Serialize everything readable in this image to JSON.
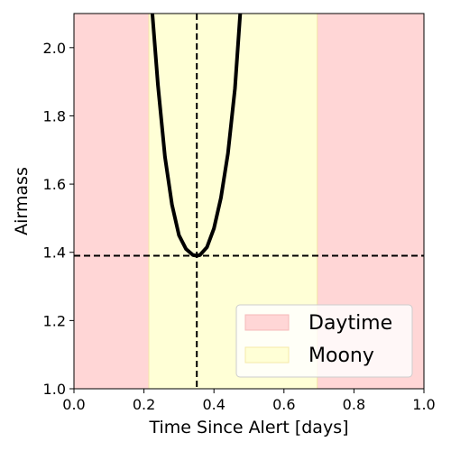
{
  "chart_data": {
    "type": "line",
    "title": "",
    "xlabel": "Time Since Alert [days]",
    "ylabel": "Airmass",
    "xlim": [
      0.0,
      1.0
    ],
    "ylim": [
      1.0,
      2.1
    ],
    "xticks": [
      "0.0",
      "0.2",
      "0.4",
      "0.6",
      "0.8",
      "1.0"
    ],
    "yticks": [
      "1.0",
      "1.2",
      "1.4",
      "1.6",
      "1.8",
      "2.0"
    ],
    "grid": false,
    "legend_position": "lower-right",
    "regions": [
      {
        "name": "Daytime",
        "color": "#ffd6d6",
        "ranges": [
          [
            0.0,
            0.214
          ],
          [
            0.695,
            1.0
          ]
        ]
      },
      {
        "name": "Moony",
        "color": "#ffffd6",
        "ranges": [
          [
            0.214,
            0.695
          ]
        ]
      }
    ],
    "series": [
      {
        "color": "#000000",
        "x": [
          0.224,
          0.24,
          0.26,
          0.28,
          0.3,
          0.32,
          0.34,
          0.351,
          0.36,
          0.38,
          0.4,
          0.42,
          0.44,
          0.46,
          0.475
        ],
        "y": [
          2.1,
          1.89,
          1.68,
          1.54,
          1.45,
          1.41,
          1.392,
          1.39,
          1.392,
          1.415,
          1.47,
          1.56,
          1.69,
          1.88,
          2.1
        ]
      }
    ],
    "reference_lines": [
      {
        "orientation": "vertical",
        "value": 0.351,
        "style": "dashed"
      },
      {
        "orientation": "horizontal",
        "value": 1.39,
        "style": "dashed"
      }
    ]
  }
}
